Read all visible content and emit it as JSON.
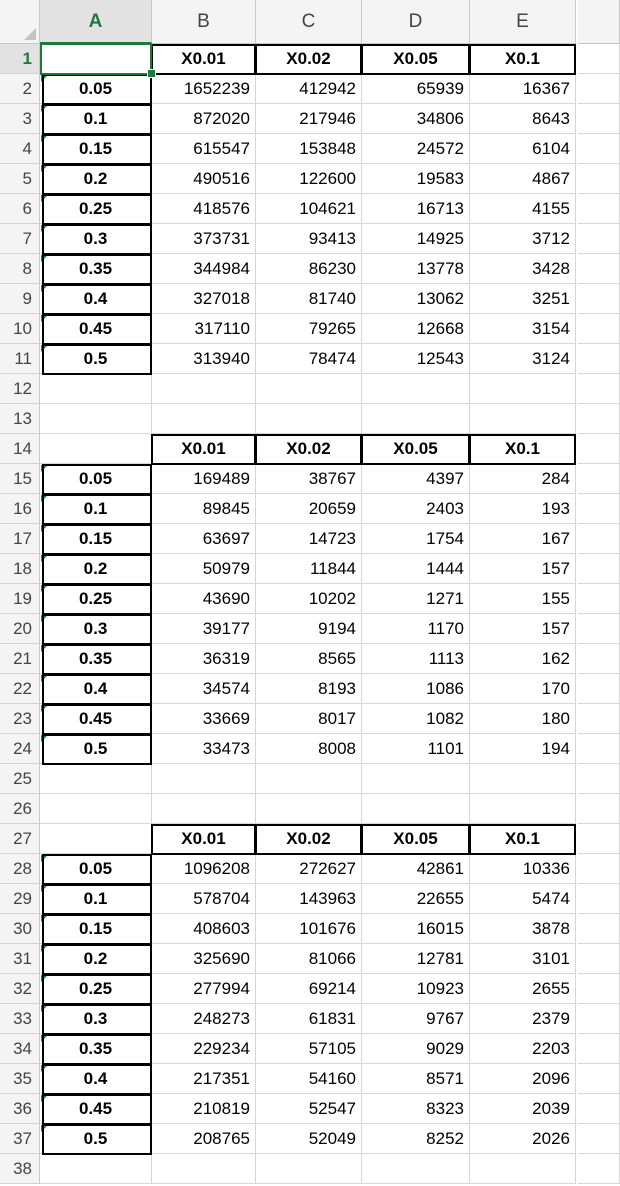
{
  "spreadsheet": {
    "columns": [
      "A",
      "B",
      "C",
      "D",
      "E"
    ],
    "active_column": "A",
    "active_row": "1",
    "rows": [
      {
        "n": "1",
        "cells": [
          "",
          "X0.01",
          "X0.02",
          "X0.05",
          "X0.1"
        ]
      },
      {
        "n": "2",
        "cells": [
          "0.05",
          "1652239",
          "412942",
          "65939",
          "16367"
        ]
      },
      {
        "n": "3",
        "cells": [
          "0.1",
          "872020",
          "217946",
          "34806",
          "8643"
        ]
      },
      {
        "n": "4",
        "cells": [
          "0.15",
          "615547",
          "153848",
          "24572",
          "6104"
        ]
      },
      {
        "n": "5",
        "cells": [
          "0.2",
          "490516",
          "122600",
          "19583",
          "4867"
        ]
      },
      {
        "n": "6",
        "cells": [
          "0.25",
          "418576",
          "104621",
          "16713",
          "4155"
        ]
      },
      {
        "n": "7",
        "cells": [
          "0.3",
          "373731",
          "93413",
          "14925",
          "3712"
        ]
      },
      {
        "n": "8",
        "cells": [
          "0.35",
          "344984",
          "86230",
          "13778",
          "3428"
        ]
      },
      {
        "n": "9",
        "cells": [
          "0.4",
          "327018",
          "81740",
          "13062",
          "3251"
        ]
      },
      {
        "n": "10",
        "cells": [
          "0.45",
          "317110",
          "79265",
          "12668",
          "3154"
        ]
      },
      {
        "n": "11",
        "cells": [
          "0.5",
          "313940",
          "78474",
          "12543",
          "3124"
        ]
      },
      {
        "n": "12",
        "cells": [
          "",
          "",
          "",
          "",
          ""
        ]
      },
      {
        "n": "13",
        "cells": [
          "",
          "",
          "",
          "",
          ""
        ]
      },
      {
        "n": "14",
        "cells": [
          "",
          "X0.01",
          "X0.02",
          "X0.05",
          "X0.1"
        ]
      },
      {
        "n": "15",
        "cells": [
          "0.05",
          "169489",
          "38767",
          "4397",
          "284"
        ]
      },
      {
        "n": "16",
        "cells": [
          "0.1",
          "89845",
          "20659",
          "2403",
          "193"
        ]
      },
      {
        "n": "17",
        "cells": [
          "0.15",
          "63697",
          "14723",
          "1754",
          "167"
        ]
      },
      {
        "n": "18",
        "cells": [
          "0.2",
          "50979",
          "11844",
          "1444",
          "157"
        ]
      },
      {
        "n": "19",
        "cells": [
          "0.25",
          "43690",
          "10202",
          "1271",
          "155"
        ]
      },
      {
        "n": "20",
        "cells": [
          "0.3",
          "39177",
          "9194",
          "1170",
          "157"
        ]
      },
      {
        "n": "21",
        "cells": [
          "0.35",
          "36319",
          "8565",
          "1113",
          "162"
        ]
      },
      {
        "n": "22",
        "cells": [
          "0.4",
          "34574",
          "8193",
          "1086",
          "170"
        ]
      },
      {
        "n": "23",
        "cells": [
          "0.45",
          "33669",
          "8017",
          "1082",
          "180"
        ]
      },
      {
        "n": "24",
        "cells": [
          "0.5",
          "33473",
          "8008",
          "1101",
          "194"
        ]
      },
      {
        "n": "25",
        "cells": [
          "",
          "",
          "",
          "",
          ""
        ]
      },
      {
        "n": "26",
        "cells": [
          "",
          "",
          "",
          "",
          ""
        ]
      },
      {
        "n": "27",
        "cells": [
          "",
          "X0.01",
          "X0.02",
          "X0.05",
          "X0.1"
        ]
      },
      {
        "n": "28",
        "cells": [
          "0.05",
          "1096208",
          "272627",
          "42861",
          "10336"
        ]
      },
      {
        "n": "29",
        "cells": [
          "0.1",
          "578704",
          "143963",
          "22655",
          "5474"
        ]
      },
      {
        "n": "30",
        "cells": [
          "0.15",
          "408603",
          "101676",
          "16015",
          "3878"
        ]
      },
      {
        "n": "31",
        "cells": [
          "0.2",
          "325690",
          "81066",
          "12781",
          "3101"
        ]
      },
      {
        "n": "32",
        "cells": [
          "0.25",
          "277994",
          "69214",
          "10923",
          "2655"
        ]
      },
      {
        "n": "33",
        "cells": [
          "0.3",
          "248273",
          "61831",
          "9767",
          "2379"
        ]
      },
      {
        "n": "34",
        "cells": [
          "0.35",
          "229234",
          "57105",
          "9029",
          "2203"
        ]
      },
      {
        "n": "35",
        "cells": [
          "0.4",
          "217351",
          "54160",
          "8571",
          "2096"
        ]
      },
      {
        "n": "36",
        "cells": [
          "0.45",
          "210819",
          "52547",
          "8323",
          "2039"
        ]
      },
      {
        "n": "37",
        "cells": [
          "0.5",
          "208765",
          "52049",
          "8252",
          "2026"
        ]
      },
      {
        "n": "38",
        "cells": [
          "",
          "",
          "",
          "",
          ""
        ]
      }
    ]
  },
  "colors": {
    "selection": "#1e7a3c",
    "error_indicator": "#2b8a3e",
    "grid": "#d7d7d7",
    "header_bg": "#f4f4f4"
  }
}
